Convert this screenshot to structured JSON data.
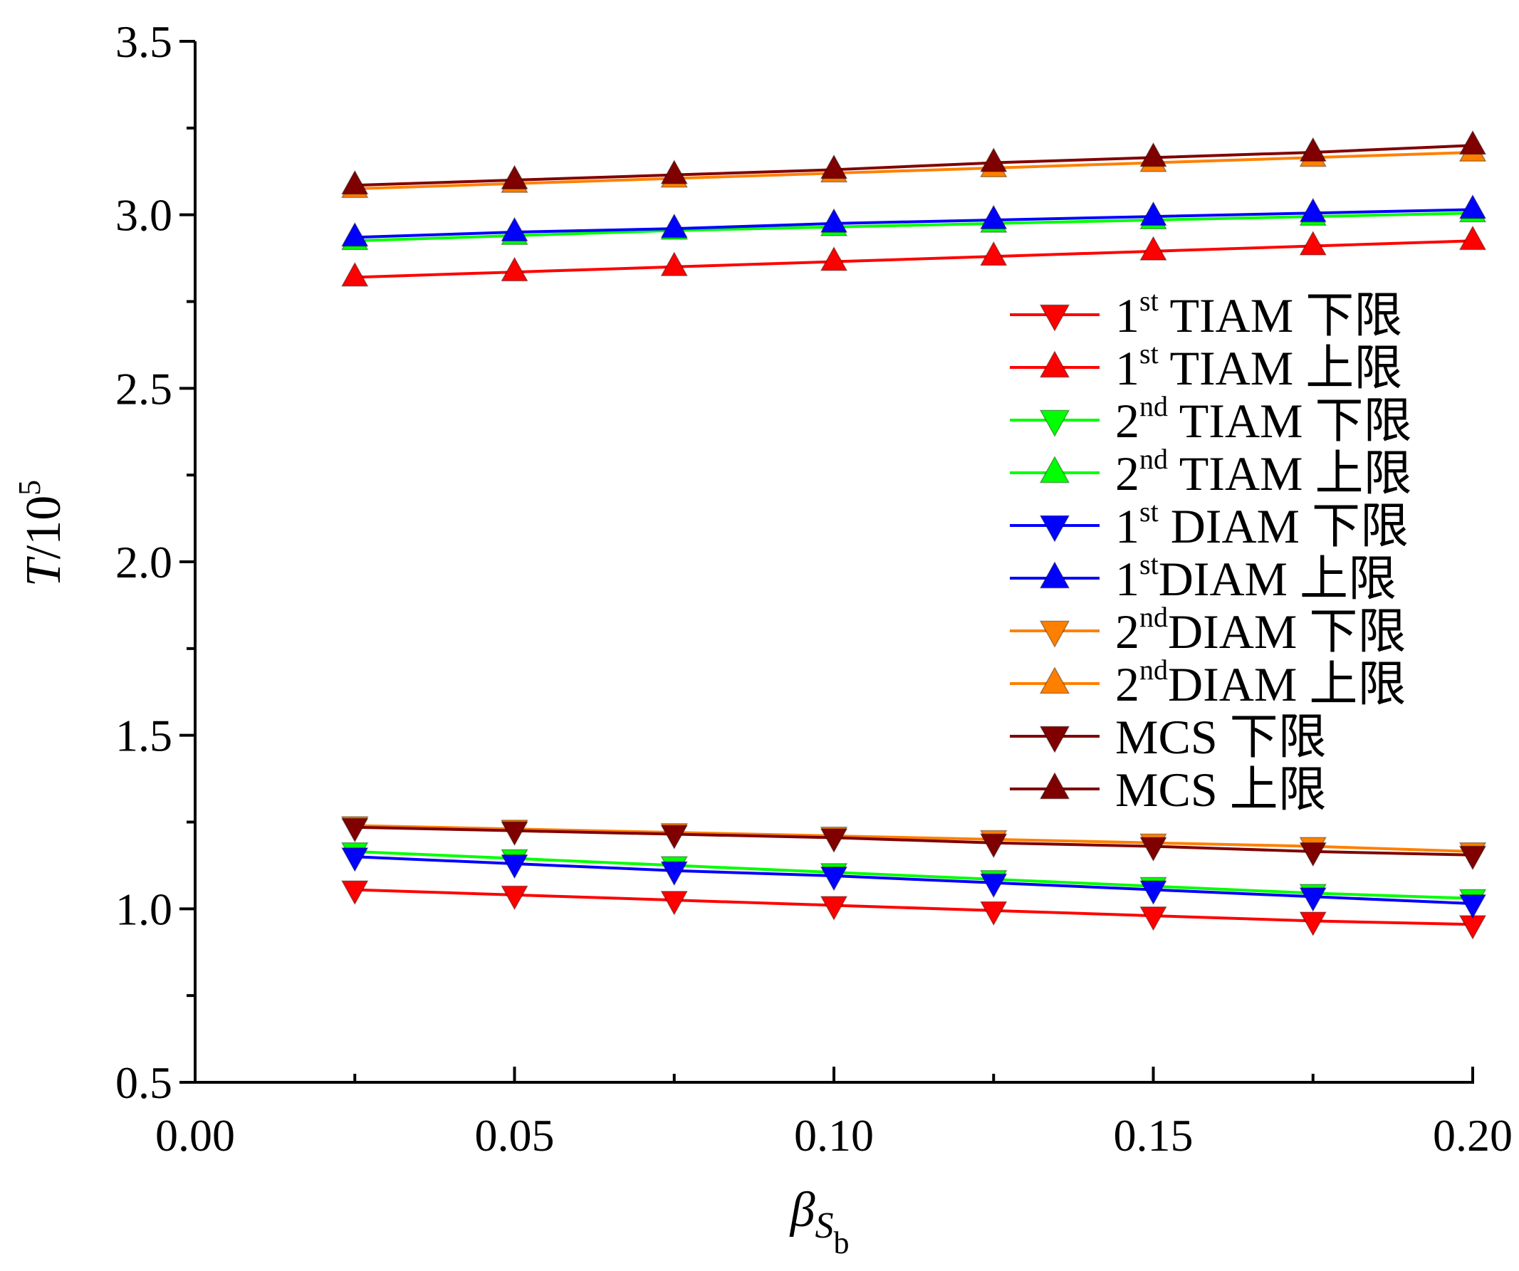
{
  "chart_data": {
    "type": "line",
    "title": "",
    "xlabel": {
      "symbol": "β",
      "sub": "S",
      "subsub": "b"
    },
    "ylabel": {
      "symbol": "T",
      "rest": "/10",
      "sup": "5"
    },
    "xlim": [
      0.0,
      0.2
    ],
    "ylim": [
      0.5,
      3.5
    ],
    "x_ticks": [
      "0.00",
      "0.05",
      "0.10",
      "0.15",
      "0.20"
    ],
    "y_ticks": [
      "0.5",
      "1.0",
      "1.5",
      "2.0",
      "2.5",
      "3.0",
      "3.5"
    ],
    "grid": false,
    "legend_position": "right",
    "x": [
      0.025,
      0.05,
      0.075,
      0.1,
      0.125,
      0.15,
      0.175,
      0.2
    ],
    "series": [
      {
        "name": "1st TIAM 下限",
        "legend": {
          "pre": "1",
          "sup": "st",
          "text": " TIAM 下限"
        },
        "color": "#ff0000",
        "marker": "down",
        "values": [
          1.055,
          1.04,
          1.025,
          1.01,
          0.995,
          0.98,
          0.965,
          0.955
        ]
      },
      {
        "name": "1st TIAM 上限",
        "legend": {
          "pre": "1",
          "sup": "st",
          "text": " TIAM 上限"
        },
        "color": "#ff0000",
        "marker": "up",
        "values": [
          2.82,
          2.835,
          2.85,
          2.865,
          2.88,
          2.895,
          2.91,
          2.925
        ]
      },
      {
        "name": "2nd TIAM 下限",
        "legend": {
          "pre": "2",
          "sup": "nd",
          "text": " TIAM 下限"
        },
        "color": "#00ff00",
        "marker": "down",
        "values": [
          1.165,
          1.145,
          1.125,
          1.105,
          1.085,
          1.065,
          1.045,
          1.03
        ]
      },
      {
        "name": "2nd TIAM 上限",
        "legend": {
          "pre": "2",
          "sup": "nd",
          "text": " TIAM 上限"
        },
        "color": "#00ff00",
        "marker": "up",
        "values": [
          2.925,
          2.94,
          2.955,
          2.965,
          2.975,
          2.985,
          2.995,
          3.005
        ]
      },
      {
        "name": "1st DIAM 下限",
        "legend": {
          "pre": "1",
          "sup": "st",
          "text": " DIAM 下限"
        },
        "color": "#0000ff",
        "marker": "down",
        "values": [
          1.15,
          1.13,
          1.11,
          1.095,
          1.075,
          1.055,
          1.035,
          1.015
        ]
      },
      {
        "name": "1st DIAM 上限",
        "legend": {
          "pre": "1",
          "sup": "st",
          "text": "DIAM 上限"
        },
        "color": "#0000ff",
        "marker": "up",
        "values": [
          2.935,
          2.95,
          2.96,
          2.975,
          2.985,
          2.995,
          3.005,
          3.015
        ]
      },
      {
        "name": "2nd DIAM 下限",
        "legend": {
          "pre": "2",
          "sup": "nd",
          "text": "DIAM 下限"
        },
        "color": "#ff8000",
        "marker": "down",
        "values": [
          1.24,
          1.23,
          1.22,
          1.21,
          1.2,
          1.19,
          1.18,
          1.165
        ]
      },
      {
        "name": "2nd DIAM 上限",
        "legend": {
          "pre": "2",
          "sup": "nd",
          "text": "DIAM 上限"
        },
        "color": "#ff8000",
        "marker": "up",
        "values": [
          3.075,
          3.09,
          3.105,
          3.12,
          3.135,
          3.15,
          3.165,
          3.18
        ]
      },
      {
        "name": "MCS 下限",
        "legend": {
          "pre": "",
          "sup": "",
          "text": "MCS 下限"
        },
        "color": "#800000",
        "marker": "down",
        "values": [
          1.235,
          1.225,
          1.215,
          1.205,
          1.19,
          1.18,
          1.165,
          1.155
        ]
      },
      {
        "name": "MCS 上限",
        "legend": {
          "pre": "",
          "sup": "",
          "text": "MCS  上限"
        },
        "color": "#800000",
        "marker": "up",
        "values": [
          3.085,
          3.1,
          3.115,
          3.13,
          3.15,
          3.165,
          3.18,
          3.2
        ]
      }
    ]
  }
}
